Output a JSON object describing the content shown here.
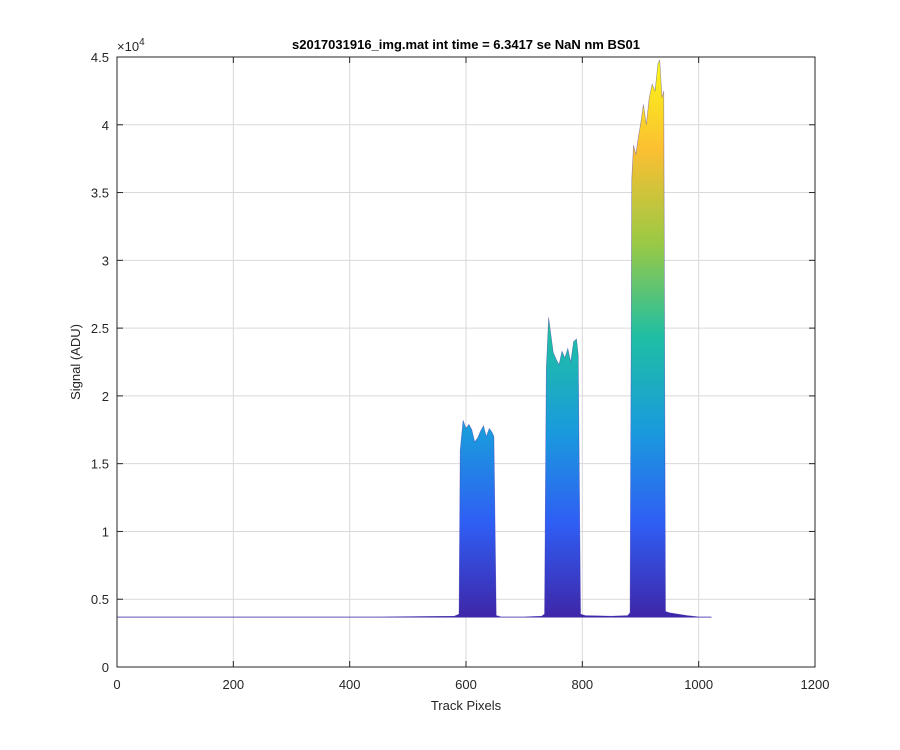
{
  "chart_data": {
    "type": "area",
    "title": "s2017031916_img.mat int time = 6.3417 se  NaN nm BS01",
    "xlabel": "Track Pixels",
    "ylabel": "Signal (ADU)",
    "xlim": [
      0,
      1200
    ],
    "ylim": [
      0,
      45000
    ],
    "y_exponent_label": "×10",
    "y_exponent": "4",
    "grid": true,
    "x_ticks": [
      0,
      200,
      400,
      600,
      800,
      1000,
      1200
    ],
    "x_tick_labels": [
      "0",
      "200",
      "400",
      "600",
      "800",
      "1000",
      "1200"
    ],
    "y_ticks": [
      0,
      5000,
      10000,
      15000,
      20000,
      25000,
      30000,
      35000,
      40000,
      45000
    ],
    "y_tick_labels": [
      "0",
      "0.5",
      "1",
      "1.5",
      "2",
      "2.5",
      "3",
      "3.5",
      "4",
      "4.5"
    ],
    "colormap": [
      "#3e26a8",
      "#2f5ef4",
      "#1a9bdc",
      "#1fbea4",
      "#9ac945",
      "#fbbf32",
      "#f9fb15"
    ],
    "series": [
      {
        "x": [
          0,
          150,
          300,
          450,
          580,
          588,
          590,
          595,
          600,
          605,
          610,
          615,
          620,
          625,
          630,
          635,
          640,
          645,
          648,
          652,
          660,
          700,
          730,
          735,
          738,
          742,
          746,
          750,
          755,
          760,
          765,
          770,
          775,
          780,
          785,
          790,
          793,
          797,
          805,
          850,
          878,
          882,
          885,
          888,
          892,
          896,
          900,
          905,
          910,
          915,
          920,
          925,
          930,
          933,
          937,
          940,
          943,
          950,
          980,
          1000,
          1022
        ],
        "y": [
          3700,
          3700,
          3700,
          3700,
          3750,
          3900,
          16000,
          18200,
          17600,
          17900,
          17500,
          16600,
          16900,
          17400,
          17800,
          17000,
          17600,
          17300,
          17000,
          3800,
          3700,
          3700,
          3750,
          3900,
          22000,
          25800,
          24500,
          23200,
          22700,
          22300,
          23300,
          22800,
          23500,
          22500,
          24000,
          24200,
          23000,
          3900,
          3800,
          3750,
          3800,
          4000,
          36000,
          38500,
          37800,
          39000,
          40000,
          41500,
          40000,
          42000,
          43000,
          42500,
          44500,
          44800,
          42000,
          42500,
          4100,
          4000,
          3800,
          3700,
          3700
        ]
      }
    ]
  }
}
